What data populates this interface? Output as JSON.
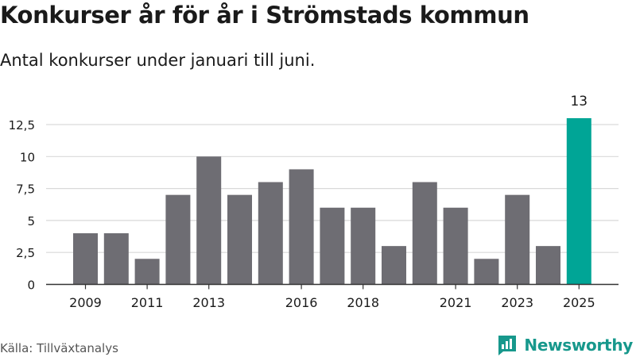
{
  "header": {
    "title": "Konkurser år för år i Strömstads kommun",
    "subtitle": "Antal konkurser under januari till juni."
  },
  "footer": {
    "source": "Källa: Tillväxtanalys",
    "brand": "Newsworthy",
    "brand_icon": "bar-chart-logo-icon"
  },
  "colors": {
    "bar": "#6e6d73",
    "highlight": "#00a596",
    "grid": "#d9d9d9",
    "axis": "#333333",
    "text": "#1a1a1a"
  },
  "chart_data": {
    "type": "bar",
    "title": "Konkurser år för år i Strömstads kommun",
    "subtitle": "Antal konkurser under januari till juni.",
    "categories": [
      "2009",
      "2010",
      "2011",
      "2012",
      "2013",
      "2014",
      "2015",
      "2016",
      "2017",
      "2018",
      "2019",
      "2020",
      "2021",
      "2022",
      "2023",
      "2024",
      "2025"
    ],
    "values": [
      4,
      4,
      2,
      7,
      10,
      7,
      8,
      9,
      6,
      6,
      3,
      8,
      6,
      2,
      7,
      3,
      13
    ],
    "highlight_category": "2025",
    "data_labels": [
      {
        "category": "2025",
        "text": "13"
      }
    ],
    "x_tick_labels": [
      "2009",
      "2011",
      "2013",
      "2016",
      "2018",
      "2021",
      "2023",
      "2025"
    ],
    "y_ticks": [
      0,
      2.5,
      5,
      7.5,
      10,
      12.5
    ],
    "y_tick_labels": [
      "0",
      "2,5",
      "5",
      "7,5",
      "10",
      "12,5"
    ],
    "ylim": [
      0,
      13
    ],
    "xlabel": "",
    "ylabel": "",
    "grid": true,
    "legend": "none",
    "source": "Källa: Tillväxtanalys"
  }
}
